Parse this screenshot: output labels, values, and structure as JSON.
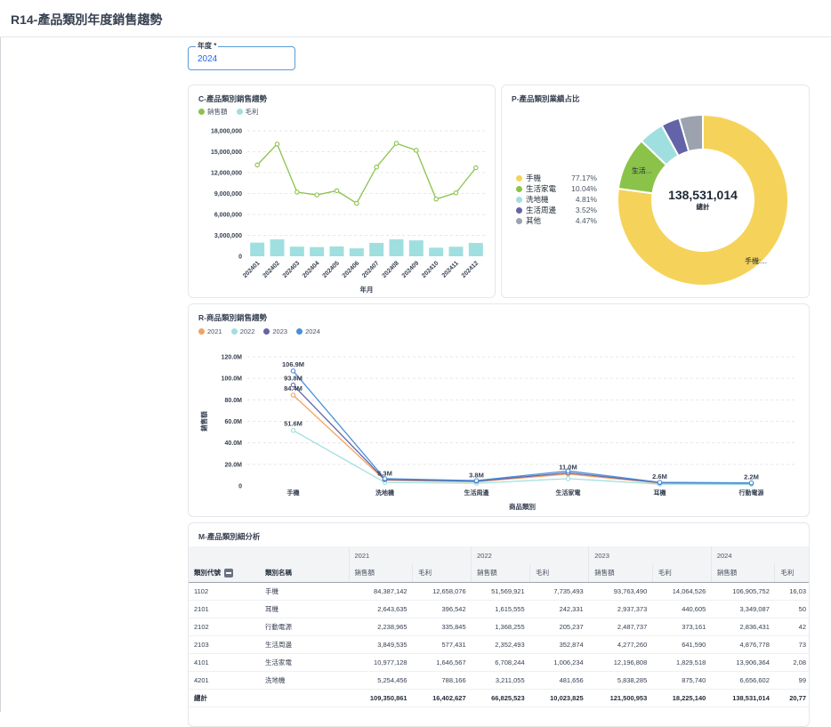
{
  "page": {
    "title": "R14-產品類別年度銷售趨勢"
  },
  "filter": {
    "label": "年度 *",
    "value": "2024"
  },
  "colors": {
    "accent": "#5b9bd5",
    "sales": "#8bc34a",
    "profit": "#a0dfe0"
  },
  "cards": {
    "c_chart": {
      "title": "C-產品類別銷售趨勢"
    },
    "p_chart": {
      "title": "P-產品類別業績占比"
    },
    "r_chart": {
      "title": "R-商品類別銷售趨勢"
    },
    "m_table": {
      "title": "M-產品類別細分析"
    }
  },
  "chart_data": [
    {
      "type": "line",
      "title": "C-產品類別銷售趨勢",
      "xlabel": "年月",
      "ylabel": "",
      "categories": [
        "202401",
        "202402",
        "202403",
        "202404",
        "202405",
        "202406",
        "202407",
        "202408",
        "202409",
        "202410",
        "202411",
        "202412"
      ],
      "series": [
        {
          "name": "銷售額",
          "type": "line",
          "color": "#8bc34a",
          "values": [
            13100000,
            16100000,
            9200000,
            8800000,
            9400000,
            7600000,
            12800000,
            16200000,
            15200000,
            8200000,
            9100000,
            12700000
          ]
        },
        {
          "name": "毛利",
          "type": "bar",
          "color": "#a0dfe0",
          "values": [
            1960000,
            2420000,
            1380000,
            1320000,
            1410000,
            1140000,
            1920000,
            2430000,
            2280000,
            1230000,
            1370000,
            1910000
          ]
        }
      ],
      "ylim": [
        0,
        18000000
      ],
      "yticks": [
        "0",
        "3,000,000",
        "6,000,000",
        "9,000,000",
        "12,000,000",
        "15,000,000",
        "18,000,000"
      ],
      "grid": true,
      "legend": "top-left"
    },
    {
      "type": "pie",
      "title": "P-產品類別業績占比",
      "center_value": "138,531,014",
      "center_label": "總計",
      "slices": [
        {
          "name": "手機",
          "pct": 77.17,
          "pct_label": "77.17%",
          "color": "#f5d35a",
          "label": "手機:..."
        },
        {
          "name": "生活家電",
          "pct": 10.04,
          "pct_label": "10.04%",
          "color": "#8bc34a",
          "label": "生活..."
        },
        {
          "name": "洗地機",
          "pct": 4.81,
          "pct_label": "4.81%",
          "color": "#a0dfe0",
          "label": ""
        },
        {
          "name": "生活周邊",
          "pct": 3.52,
          "pct_label": "3.52%",
          "color": "#6363a8",
          "label": ""
        },
        {
          "name": "其他",
          "pct": 4.47,
          "pct_label": "4.47%",
          "color": "#9ca3af",
          "label": ""
        }
      ],
      "legend": "left"
    },
    {
      "type": "line",
      "title": "R-商品類別銷售趨勢",
      "xlabel": "商品類別",
      "ylabel": "銷售額",
      "categories": [
        "手機",
        "洗地機",
        "生活周邊",
        "生活家電",
        "耳機",
        "行動電源"
      ],
      "series": [
        {
          "name": "2021",
          "color": "#f4a261",
          "values": [
            84.4,
            5.3,
            3.8,
            11.0,
            2.6,
            2.2
          ]
        },
        {
          "name": "2022",
          "color": "#a0dfe0",
          "values": [
            51.6,
            3.2,
            2.4,
            6.7,
            1.6,
            1.4
          ]
        },
        {
          "name": "2023",
          "color": "#6363a8",
          "values": [
            93.8,
            5.8,
            4.3,
            12.2,
            2.9,
            2.5
          ]
        },
        {
          "name": "2024",
          "color": "#4a90d9",
          "values": [
            106.9,
            6.7,
            4.9,
            13.9,
            3.3,
            2.8
          ]
        }
      ],
      "point_labels": [
        {
          "category": "手機",
          "text": "106.9M",
          "value": 106.9
        },
        {
          "category": "手機",
          "text": "93.8M",
          "value": 93.8
        },
        {
          "category": "手機",
          "text": "84.4M",
          "value": 84.4
        },
        {
          "category": "手機",
          "text": "51.6M",
          "value": 51.6
        },
        {
          "category": "洗地機",
          "text": "5.3M",
          "value": 5.3
        },
        {
          "category": "生活周邊",
          "text": "3.8M",
          "value": 3.8
        },
        {
          "category": "生活家電",
          "text": "11.0M",
          "value": 11.0
        },
        {
          "category": "耳機",
          "text": "2.6M",
          "value": 2.6
        },
        {
          "category": "行動電源",
          "text": "2.2M",
          "value": 2.2
        }
      ],
      "ylim": [
        0,
        120
      ],
      "yticks": [
        "0",
        "20.0M",
        "40.0M",
        "60.0M",
        "80.0M",
        "100.0M",
        "120.0M"
      ],
      "grid": true,
      "legend": "top-left"
    }
  ],
  "table": {
    "row_headers": [
      "類別代號",
      "類別名稱"
    ],
    "years": [
      "2021",
      "2022",
      "2023",
      "2024"
    ],
    "measures": [
      "銷售額",
      "毛利"
    ],
    "rows": [
      {
        "code": "1102",
        "name": "手機",
        "vals": [
          "84,387,142",
          "12,658,076",
          "51,569,921",
          "7,735,493",
          "93,763,490",
          "14,064,526",
          "106,905,752",
          "16,03"
        ]
      },
      {
        "code": "2101",
        "name": "耳機",
        "vals": [
          "2,643,635",
          "396,542",
          "1,615,555",
          "242,331",
          "2,937,373",
          "440,605",
          "3,349,087",
          "50"
        ]
      },
      {
        "code": "2102",
        "name": "行動電源",
        "vals": [
          "2,238,965",
          "335,845",
          "1,368,255",
          "205,237",
          "2,487,737",
          "373,161",
          "2,836,431",
          "42"
        ]
      },
      {
        "code": "2103",
        "name": "生活周邊",
        "vals": [
          "3,849,535",
          "577,431",
          "2,352,493",
          "352,874",
          "4,277,260",
          "641,590",
          "4,876,778",
          "73"
        ]
      },
      {
        "code": "4101",
        "name": "生活家電",
        "vals": [
          "10,977,128",
          "1,646,567",
          "6,708,244",
          "1,006,234",
          "12,196,808",
          "1,829,518",
          "13,906,364",
          "2,08"
        ]
      },
      {
        "code": "4201",
        "name": "洗地機",
        "vals": [
          "5,254,456",
          "788,166",
          "3,211,055",
          "481,656",
          "5,838,285",
          "875,740",
          "6,656,602",
          "99"
        ]
      }
    ],
    "total": {
      "label": "總計",
      "vals": [
        "109,350,861",
        "16,402,627",
        "66,825,523",
        "10,023,825",
        "121,500,953",
        "18,225,140",
        "138,531,014",
        "20,77"
      ]
    }
  }
}
